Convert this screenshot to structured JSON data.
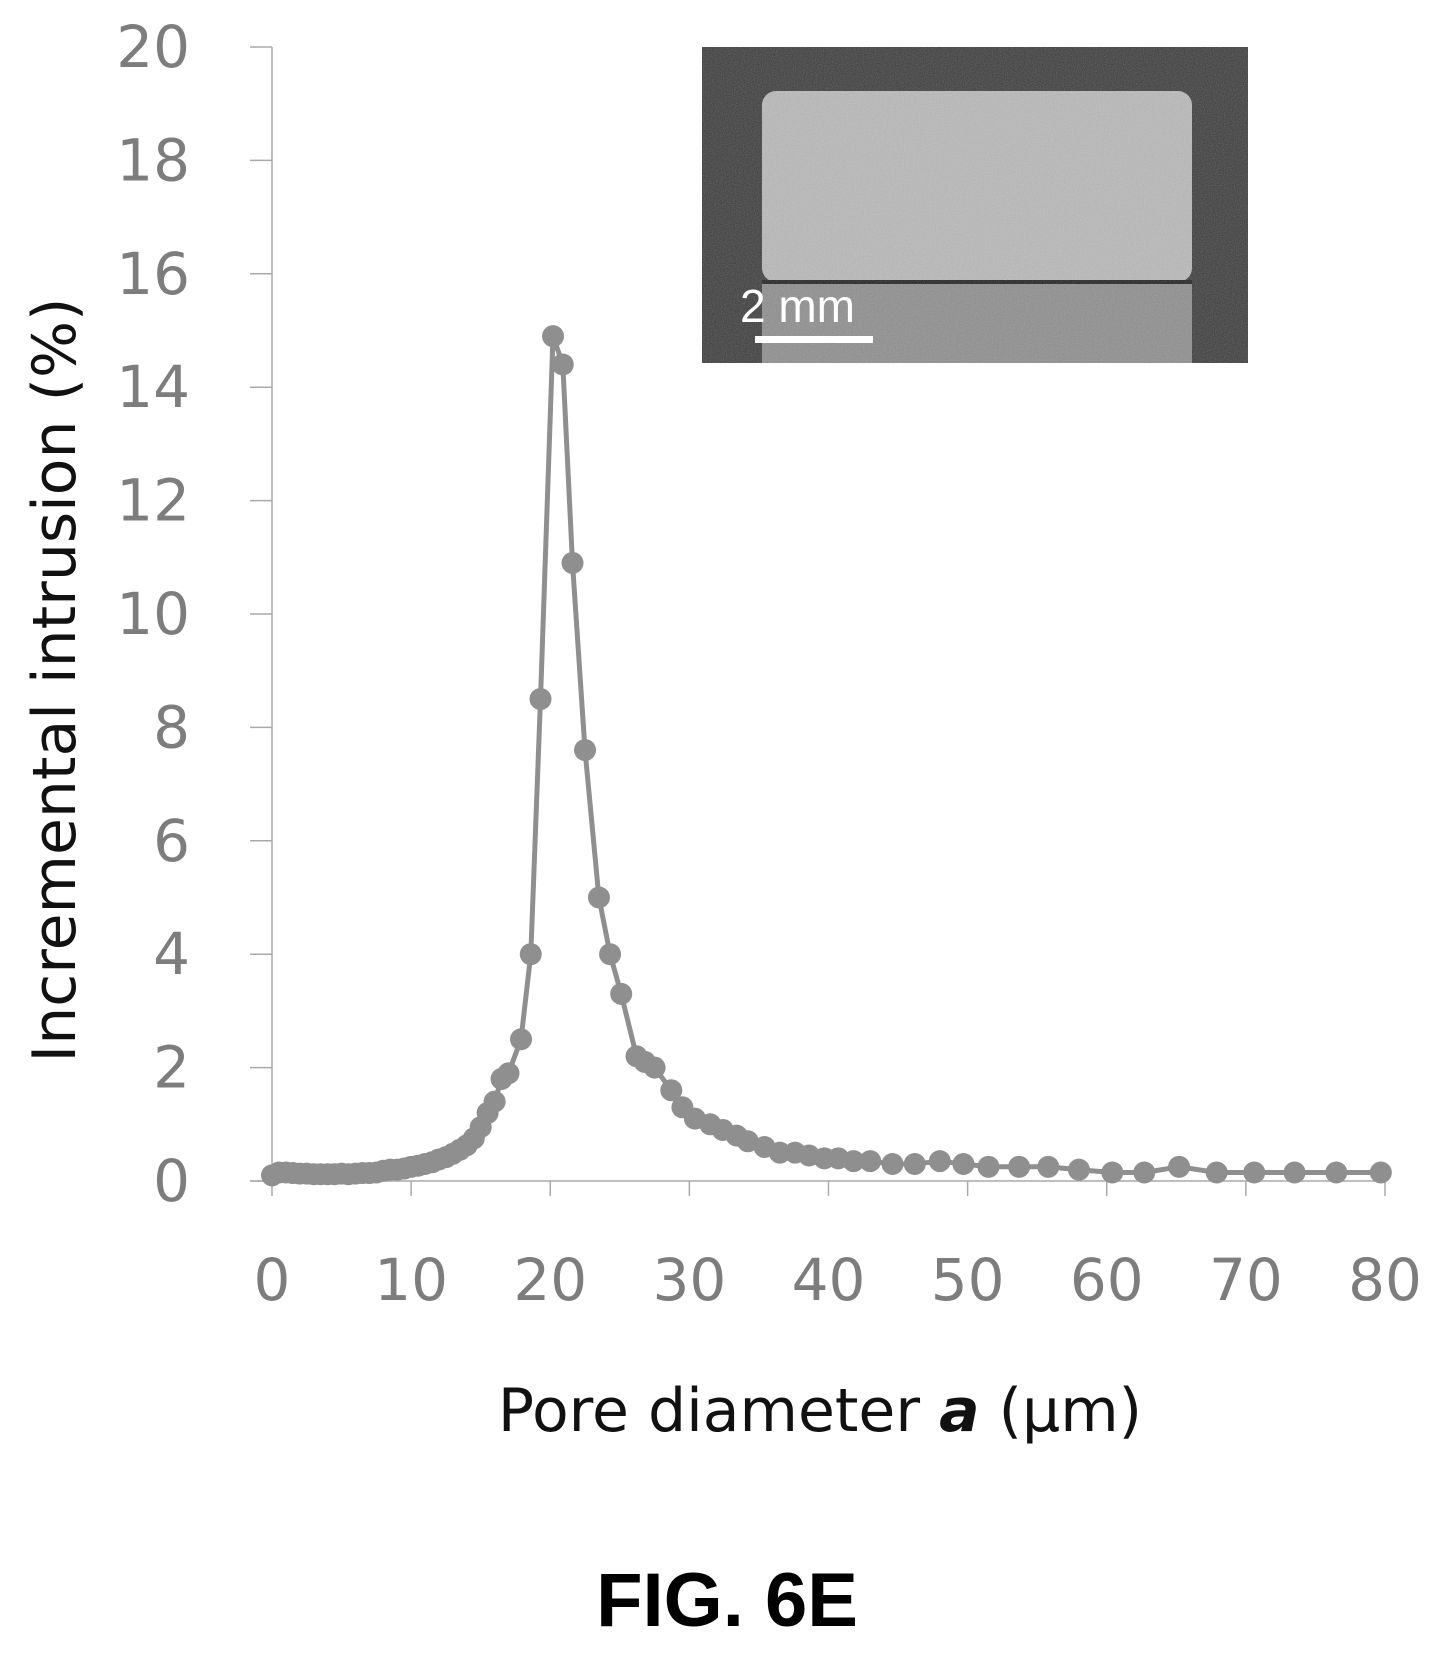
{
  "figure": {
    "label": "FIG. 6E"
  },
  "inset": {
    "scale_bar_label": "2 mm"
  },
  "colors": {
    "series": "#8f8f8f",
    "axis": "#aaaaaa",
    "tick_text": "#7d7d7d"
  },
  "chart_data": {
    "type": "line",
    "markers": true,
    "xlabel": {
      "prefix": "Pore diameter ",
      "variable": "a",
      "suffix": " (μm)"
    },
    "ylabel": "Incremental intrusion  (%)",
    "xlim": [
      0,
      80
    ],
    "ylim": [
      0,
      20
    ],
    "xticks": [
      0,
      10,
      20,
      30,
      40,
      50,
      60,
      70,
      80
    ],
    "yticks": [
      0,
      2,
      4,
      6,
      8,
      10,
      12,
      14,
      16,
      18,
      20
    ],
    "grid": false,
    "series": [
      {
        "x": [
          0,
          0.5,
          1,
          1.5,
          2,
          2.5,
          3,
          3.5,
          4,
          4.5,
          5,
          5.5,
          6,
          6.5,
          7,
          7.5,
          8,
          8.5,
          9,
          9.5,
          10,
          10.5,
          11,
          11.5,
          12,
          12.5,
          13,
          13.5,
          14,
          14.5,
          15,
          15.5,
          16,
          16.5,
          17,
          17.9,
          18.6,
          19.3,
          20.2,
          20.9,
          21.6,
          22.5,
          23.5,
          24.3,
          25.1,
          26.2,
          26.8,
          27.5,
          28.7,
          29.5,
          30.4,
          31.5,
          32.4,
          33.4,
          34.2,
          35.4,
          36.5,
          37.6,
          38.6,
          39.7,
          40.7,
          41.8,
          43,
          44.6,
          46.2,
          48,
          49.7,
          51.5,
          53.7,
          55.8,
          58,
          60.4,
          62.7,
          65.2,
          67.9,
          70.6,
          73.5,
          76.5,
          79.7
        ],
        "y": [
          0.1,
          0.15,
          0.15,
          0.14,
          0.13,
          0.13,
          0.12,
          0.12,
          0.12,
          0.12,
          0.13,
          0.12,
          0.13,
          0.14,
          0.14,
          0.15,
          0.18,
          0.2,
          0.2,
          0.22,
          0.25,
          0.27,
          0.3,
          0.33,
          0.38,
          0.42,
          0.48,
          0.55,
          0.63,
          0.75,
          0.95,
          1.2,
          1.4,
          1.8,
          1.9,
          2.5,
          4.0,
          8.5,
          14.9,
          14.4,
          10.9,
          7.6,
          5.0,
          4.0,
          3.3,
          2.2,
          2.1,
          2.0,
          1.6,
          1.3,
          1.1,
          1.0,
          0.9,
          0.8,
          0.7,
          0.6,
          0.5,
          0.5,
          0.45,
          0.4,
          0.4,
          0.35,
          0.35,
          0.3,
          0.3,
          0.35,
          0.3,
          0.25,
          0.25,
          0.25,
          0.2,
          0.15,
          0.15,
          0.25,
          0.15,
          0.15,
          0.15,
          0.15,
          0.15
        ]
      }
    ]
  }
}
